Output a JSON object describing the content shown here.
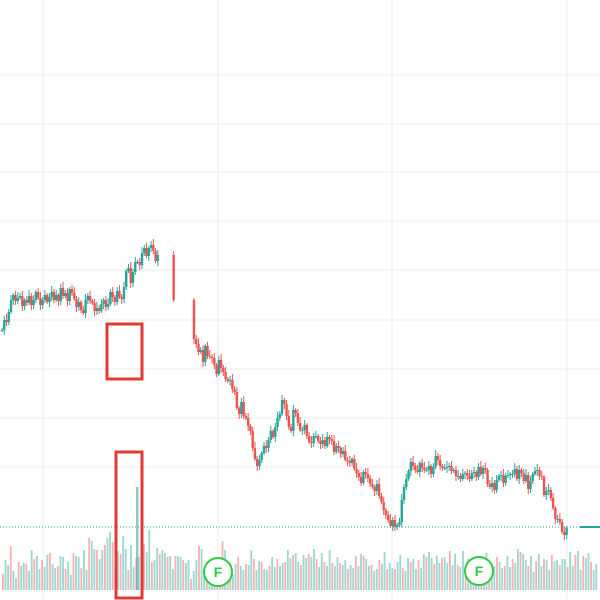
{
  "chart_data": {
    "type": "candlestick",
    "title": "",
    "xlabel": "",
    "ylabel": "",
    "grid": true,
    "colors": {
      "up": "#26a69a",
      "down": "#ef5350",
      "highlight_box": "#e53935",
      "earnings_badge": "#2ecc40",
      "last_price_line": "#26a69a",
      "grid": "#eeeeee"
    },
    "price_y_values": [
      330,
      320,
      322,
      312,
      300,
      295,
      301,
      298,
      296,
      306,
      300,
      303,
      296,
      305,
      300,
      292,
      298,
      305,
      300,
      295,
      302,
      297,
      292,
      300,
      295,
      301,
      288,
      296,
      293,
      301,
      289,
      293,
      299,
      307,
      302,
      310,
      313,
      300,
      296,
      301,
      303,
      311,
      308,
      311,
      304,
      300,
      307,
      304,
      292,
      297,
      302,
      291,
      297,
      299,
      287,
      271,
      268,
      283,
      272,
      262,
      262,
      265,
      253,
      248,
      256,
      248,
      245,
      251,
      261,
      255,
      null,
      null,
      null,
      null,
      null,
      null,
      300,
      null,
      null,
      null,
      null,
      null,
      null,
      null,
      null,
      339,
      344,
      352,
      350,
      362,
      346,
      356,
      357,
      358,
      365,
      374,
      360,
      368,
      372,
      379,
      381,
      380,
      389,
      392,
      408,
      414,
      402,
      416,
      418,
      426,
      431,
      448,
      459,
      466,
      460,
      453,
      446,
      448,
      440,
      431,
      437,
      427,
      418,
      414,
      400,
      404,
      416,
      427,
      431,
      410,
      413,
      423,
      430,
      430,
      425,
      436,
      442,
      443,
      436,
      436,
      441,
      444,
      440,
      446,
      437,
      439,
      441,
      452,
      446,
      448,
      454,
      451,
      460,
      461,
      463,
      459,
      469,
      473,
      477,
      483,
      472,
      474,
      478,
      484,
      487,
      491,
      484,
      496,
      502,
      510,
      515,
      520,
      526,
      520,
      527,
      525,
      522,
      500,
      487,
      479,
      471,
      462,
      466,
      470,
      472,
      463,
      468,
      470,
      470,
      466,
      474,
      467,
      456,
      460,
      466,
      468,
      468,
      467,
      466,
      471,
      470,
      476,
      476,
      479,
      474,
      473,
      476,
      479,
      473,
      472,
      477,
      467,
      474,
      468,
      470,
      484,
      487,
      483,
      490,
      480,
      476,
      475,
      483,
      476,
      475,
      474,
      474,
      469,
      479,
      470,
      473,
      481,
      475,
      489,
      481,
      474,
      471,
      470,
      476,
      477,
      495,
      491,
      490,
      498,
      508,
      519,
      519,
      522,
      532,
      535,
      528,
      null,
      null,
      null,
      null,
      null,
      null,
      null,
      null,
      null,
      null,
      null,
      null,
      null
    ],
    "last_price_y": 527,
    "volume_bars": [
      16,
      30,
      25,
      44,
      19,
      12,
      28,
      24,
      27,
      26,
      19,
      40,
      31,
      34,
      21,
      30,
      23,
      35,
      37,
      26,
      22,
      24,
      34,
      33,
      21,
      28,
      15,
      37,
      34,
      33,
      22,
      40,
      20,
      52,
      49,
      41,
      40,
      31,
      40,
      45,
      52,
      58,
      48,
      27,
      39,
      36,
      54,
      41,
      20,
      45,
      23,
      32,
      33,
      30,
      46,
      38,
      60,
      28,
      30,
      42,
      36,
      40,
      37,
      33,
      34,
      21,
      34,
      34,
      33,
      30,
      27,
      30,
      11,
      19,
      30,
      44,
      41,
      22,
      28,
      17,
      27,
      30,
      27,
      28,
      49,
      40,
      25,
      27,
      16,
      26,
      33,
      24,
      20,
      26,
      25,
      40,
      31,
      20,
      29,
      28,
      21,
      20,
      24,
      33,
      23,
      31,
      24,
      27,
      28,
      40,
      32,
      35,
      37,
      28,
      25,
      35,
      32,
      36,
      33,
      41,
      31,
      23,
      37,
      28,
      24,
      40,
      27,
      24,
      33,
      27,
      25,
      30,
      21,
      25,
      22,
      34,
      24,
      36,
      34,
      31,
      24,
      25,
      19,
      21,
      30,
      26,
      38,
      21,
      27,
      22,
      21,
      28,
      35,
      22,
      19,
      32,
      28,
      31,
      21,
      30,
      22,
      36,
      33,
      38,
      32,
      26,
      34,
      27,
      32,
      33,
      27,
      39,
      25,
      36,
      25,
      23,
      39,
      23,
      31,
      27,
      31,
      33,
      28,
      32,
      26,
      37,
      21,
      27,
      24,
      33,
      28,
      22,
      24,
      34,
      23,
      31,
      27,
      41,
      38,
      36,
      30,
      24,
      34,
      18,
      29,
      36,
      24,
      31,
      30,
      20,
      35,
      29,
      30,
      25,
      31,
      31,
      23,
      38,
      24,
      35,
      39,
      20,
      34,
      32,
      37,
      28,
      20,
      26
    ],
    "earnings_markers": [
      {
        "label": "F"
      },
      {
        "label": "F"
      }
    ]
  }
}
